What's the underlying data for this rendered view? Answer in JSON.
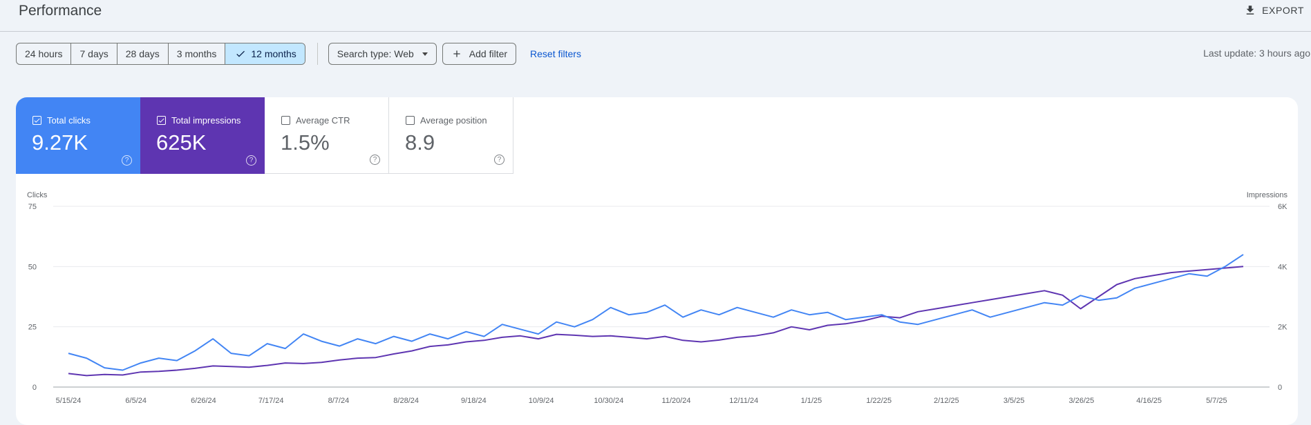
{
  "header": {
    "title": "Performance",
    "export_label": "EXPORT"
  },
  "toolbar": {
    "date_ranges": [
      "24 hours",
      "7 days",
      "28 days",
      "3 months",
      "12 months"
    ],
    "selected_range": "12 months",
    "search_type": "Search type: Web",
    "add_filter": "Add filter",
    "reset_filters": "Reset filters",
    "last_update": "Last update: 3 hours ago"
  },
  "metrics": {
    "clicks": {
      "label": "Total clicks",
      "value": "9.27K",
      "checked": true
    },
    "impressions": {
      "label": "Total impressions",
      "value": "625K",
      "checked": true
    },
    "ctr": {
      "label": "Average CTR",
      "value": "1.5%",
      "checked": false
    },
    "position": {
      "label": "Average position",
      "value": "8.9",
      "checked": false
    }
  },
  "help_glyph": "?",
  "colors": {
    "clicks": "#4285f4",
    "impressions": "#5e35b1",
    "selected_range_bg": "#c2e7ff",
    "link": "#0b57d0"
  },
  "chart_data": {
    "type": "line",
    "left_axis_label": "Clicks",
    "right_axis_label": "Impressions",
    "left_ticks": [
      "0",
      "25",
      "50",
      "75"
    ],
    "right_ticks": [
      "0",
      "2K",
      "4K",
      "6K"
    ],
    "left_ylim": [
      0,
      75
    ],
    "right_ylim": [
      0,
      6000
    ],
    "x_tick_labels": [
      "5/15/24",
      "6/5/24",
      "6/26/24",
      "7/17/24",
      "8/7/24",
      "8/28/24",
      "9/18/24",
      "10/9/24",
      "10/30/24",
      "11/20/24",
      "12/11/24",
      "1/1/25",
      "1/22/25",
      "2/12/25",
      "3/5/25",
      "3/26/25",
      "4/16/25",
      "5/7/25"
    ],
    "x_start": "5/15/24",
    "interval_days": 7,
    "series": [
      {
        "name": "Clicks",
        "axis": "left",
        "values": [
          14,
          12,
          8,
          7,
          10,
          12,
          11,
          15,
          20,
          14,
          13,
          18,
          16,
          22,
          19,
          17,
          20,
          18,
          21,
          19,
          22,
          20,
          23,
          21,
          26,
          24,
          22,
          27,
          25,
          28,
          33,
          30,
          31,
          34,
          29,
          32,
          30,
          33,
          31,
          29,
          32,
          30,
          31,
          28,
          29,
          30,
          27,
          26,
          28,
          30,
          32,
          29,
          31,
          33,
          35,
          34,
          38,
          36,
          37,
          41,
          43,
          45,
          47,
          46,
          50,
          55
        ]
      },
      {
        "name": "Impressions",
        "axis": "right",
        "values": [
          450,
          380,
          420,
          400,
          500,
          520,
          560,
          620,
          700,
          680,
          660,
          720,
          800,
          780,
          820,
          900,
          960,
          980,
          1100,
          1200,
          1350,
          1400,
          1500,
          1550,
          1650,
          1700,
          1600,
          1750,
          1720,
          1680,
          1700,
          1650,
          1600,
          1680,
          1550,
          1500,
          1560,
          1650,
          1700,
          1800,
          2000,
          1900,
          2050,
          2100,
          2200,
          2350,
          2300,
          2500,
          2600,
          2700,
          2800,
          2900,
          3000,
          3100,
          3200,
          3050,
          2600,
          3000,
          3400,
          3600,
          3700,
          3800,
          3850,
          3900,
          3950,
          4000
        ]
      }
    ],
    "grid": true,
    "legend": "none"
  }
}
